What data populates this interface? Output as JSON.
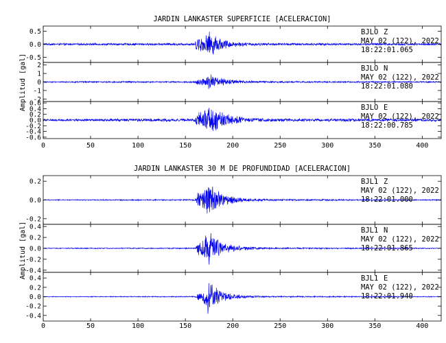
{
  "chart_data": [
    {
      "type": "line",
      "title": "JARDIN LANKASTER SUPERFICIE [ACELERACION]",
      "ylabel": "Amplitud [gal]",
      "xlim": [
        0,
        420
      ],
      "x_ticks": [
        0,
        50,
        100,
        150,
        200,
        250,
        300,
        350,
        400
      ],
      "x_tick_labels": [
        "0",
        "50",
        "100",
        "150",
        "200",
        "250",
        "300",
        "350",
        "400"
      ],
      "line_color": "#0000ee",
      "series": [
        {
          "name": "BJLO Z",
          "station": "BJLO",
          "component": "Z",
          "date": "MAY 02 (122), 2022",
          "time": "18:22:01.065",
          "ylim": [
            -0.7,
            0.7
          ],
          "y_ticks": [
            0.5,
            0.0,
            -0.5
          ],
          "y_tick_labels": [
            "0.5",
            "0.0",
            "-0.5"
          ],
          "envelope": [
            [
              0,
              0.04
            ],
            [
              160,
              0.05
            ],
            [
              163,
              0.38
            ],
            [
              168,
              0.3
            ],
            [
              173,
              0.45
            ],
            [
              176,
              0.58
            ],
            [
              180,
              0.4
            ],
            [
              190,
              0.22
            ],
            [
              200,
              0.12
            ],
            [
              215,
              0.07
            ],
            [
              240,
              0.05
            ],
            [
              420,
              0.045
            ]
          ]
        },
        {
          "name": "BJLO N",
          "station": "BJLO",
          "component": "N",
          "date": "MAY 02 (122), 2022",
          "time": "18:22:01.080",
          "ylim": [
            -2.3,
            2.3
          ],
          "y_ticks": [
            2,
            1,
            0,
            -1,
            -2
          ],
          "y_tick_labels": [
            "2",
            "1",
            "0",
            "-1",
            "-2"
          ],
          "envelope": [
            [
              0,
              0.08
            ],
            [
              160,
              0.1
            ],
            [
              163,
              0.45
            ],
            [
              170,
              0.5
            ],
            [
              174,
              0.9
            ],
            [
              176,
              1.3
            ],
            [
              180,
              0.8
            ],
            [
              190,
              0.45
            ],
            [
              200,
              0.28
            ],
            [
              215,
              0.16
            ],
            [
              240,
              0.1
            ],
            [
              420,
              0.09
            ]
          ]
        },
        {
          "name": "BJLO E",
          "station": "BJLO",
          "component": "E",
          "date": "MAY 02 (122), 2022",
          "time": "18:22:00.785",
          "ylim": [
            -0.65,
            0.65
          ],
          "y_ticks": [
            0.6,
            0.4,
            0.2,
            0.0,
            -0.2,
            -0.4,
            -0.6
          ],
          "y_tick_labels": [
            "0.6",
            "0.4",
            "0.2",
            "0.0",
            "-0.2",
            "-0.4",
            "-0.6"
          ],
          "envelope": [
            [
              0,
              0.04
            ],
            [
              160,
              0.06
            ],
            [
              163,
              0.3
            ],
            [
              168,
              0.28
            ],
            [
              173,
              0.45
            ],
            [
              177,
              0.55
            ],
            [
              181,
              0.45
            ],
            [
              190,
              0.3
            ],
            [
              200,
              0.18
            ],
            [
              215,
              0.1
            ],
            [
              240,
              0.06
            ],
            [
              420,
              0.05
            ]
          ]
        }
      ]
    },
    {
      "type": "line",
      "title": "JARDIN LANKASTER 30 M DE PROFUNDIDAD [ACELERACION]",
      "ylabel": "Amplitud [gal]",
      "xlim": [
        0,
        420
      ],
      "x_ticks": [
        0,
        50,
        100,
        150,
        200,
        250,
        300,
        350,
        400
      ],
      "x_tick_labels": [
        "0",
        "50",
        "100",
        "150",
        "200",
        "250",
        "300",
        "350",
        "400"
      ],
      "line_color": "#0000ee",
      "series": [
        {
          "name": "BJL1 Z",
          "station": "BJL1",
          "component": "Z",
          "date": "MAY 02 (122), 2022",
          "time": "18:22:01.000",
          "ylim": [
            -0.26,
            0.26
          ],
          "y_ticks": [
            0.2,
            0.0,
            -0.2
          ],
          "y_tick_labels": [
            "0.2",
            "0.0",
            "-0.2"
          ],
          "envelope": [
            [
              0,
              0.005
            ],
            [
              160,
              0.008
            ],
            [
              163,
              0.09
            ],
            [
              168,
              0.11
            ],
            [
              173,
              0.18
            ],
            [
              176,
              0.24
            ],
            [
              180,
              0.15
            ],
            [
              190,
              0.08
            ],
            [
              200,
              0.04
            ],
            [
              215,
              0.02
            ],
            [
              240,
              0.01
            ],
            [
              420,
              0.006
            ]
          ]
        },
        {
          "name": "BJL1 N",
          "station": "BJL1",
          "component": "N",
          "date": "MAY 02 (122), 2022",
          "time": "18:22:01.865",
          "ylim": [
            -0.44,
            0.44
          ],
          "y_ticks": [
            0.4,
            0.2,
            0.0,
            -0.2,
            -0.4
          ],
          "y_tick_labels": [
            "0.4",
            "0.2",
            "0.0",
            "-0.2",
            "-0.4"
          ],
          "envelope": [
            [
              0,
              0.008
            ],
            [
              160,
              0.012
            ],
            [
              163,
              0.12
            ],
            [
              168,
              0.18
            ],
            [
              173,
              0.3
            ],
            [
              176,
              0.42
            ],
            [
              180,
              0.28
            ],
            [
              190,
              0.14
            ],
            [
              200,
              0.07
            ],
            [
              215,
              0.035
            ],
            [
              240,
              0.015
            ],
            [
              420,
              0.01
            ]
          ]
        },
        {
          "name": "BJL1 E",
          "station": "BJL1",
          "component": "E",
          "date": "MAY 02 (122), 2022",
          "time": "18:22:01.940",
          "ylim": [
            -0.52,
            0.52
          ],
          "y_ticks": [
            0.4,
            0.2,
            0.0,
            -0.2,
            -0.4
          ],
          "y_tick_labels": [
            "0.4",
            "0.2",
            "0.0",
            "-0.2",
            "-0.4"
          ],
          "envelope": [
            [
              0,
              0.008
            ],
            [
              160,
              0.012
            ],
            [
              163,
              0.08
            ],
            [
              168,
              0.12
            ],
            [
              172,
              0.3
            ],
            [
              175,
              0.5
            ],
            [
              179,
              0.3
            ],
            [
              190,
              0.12
            ],
            [
              200,
              0.06
            ],
            [
              215,
              0.03
            ],
            [
              240,
              0.015
            ],
            [
              420,
              0.01
            ]
          ]
        }
      ]
    }
  ]
}
